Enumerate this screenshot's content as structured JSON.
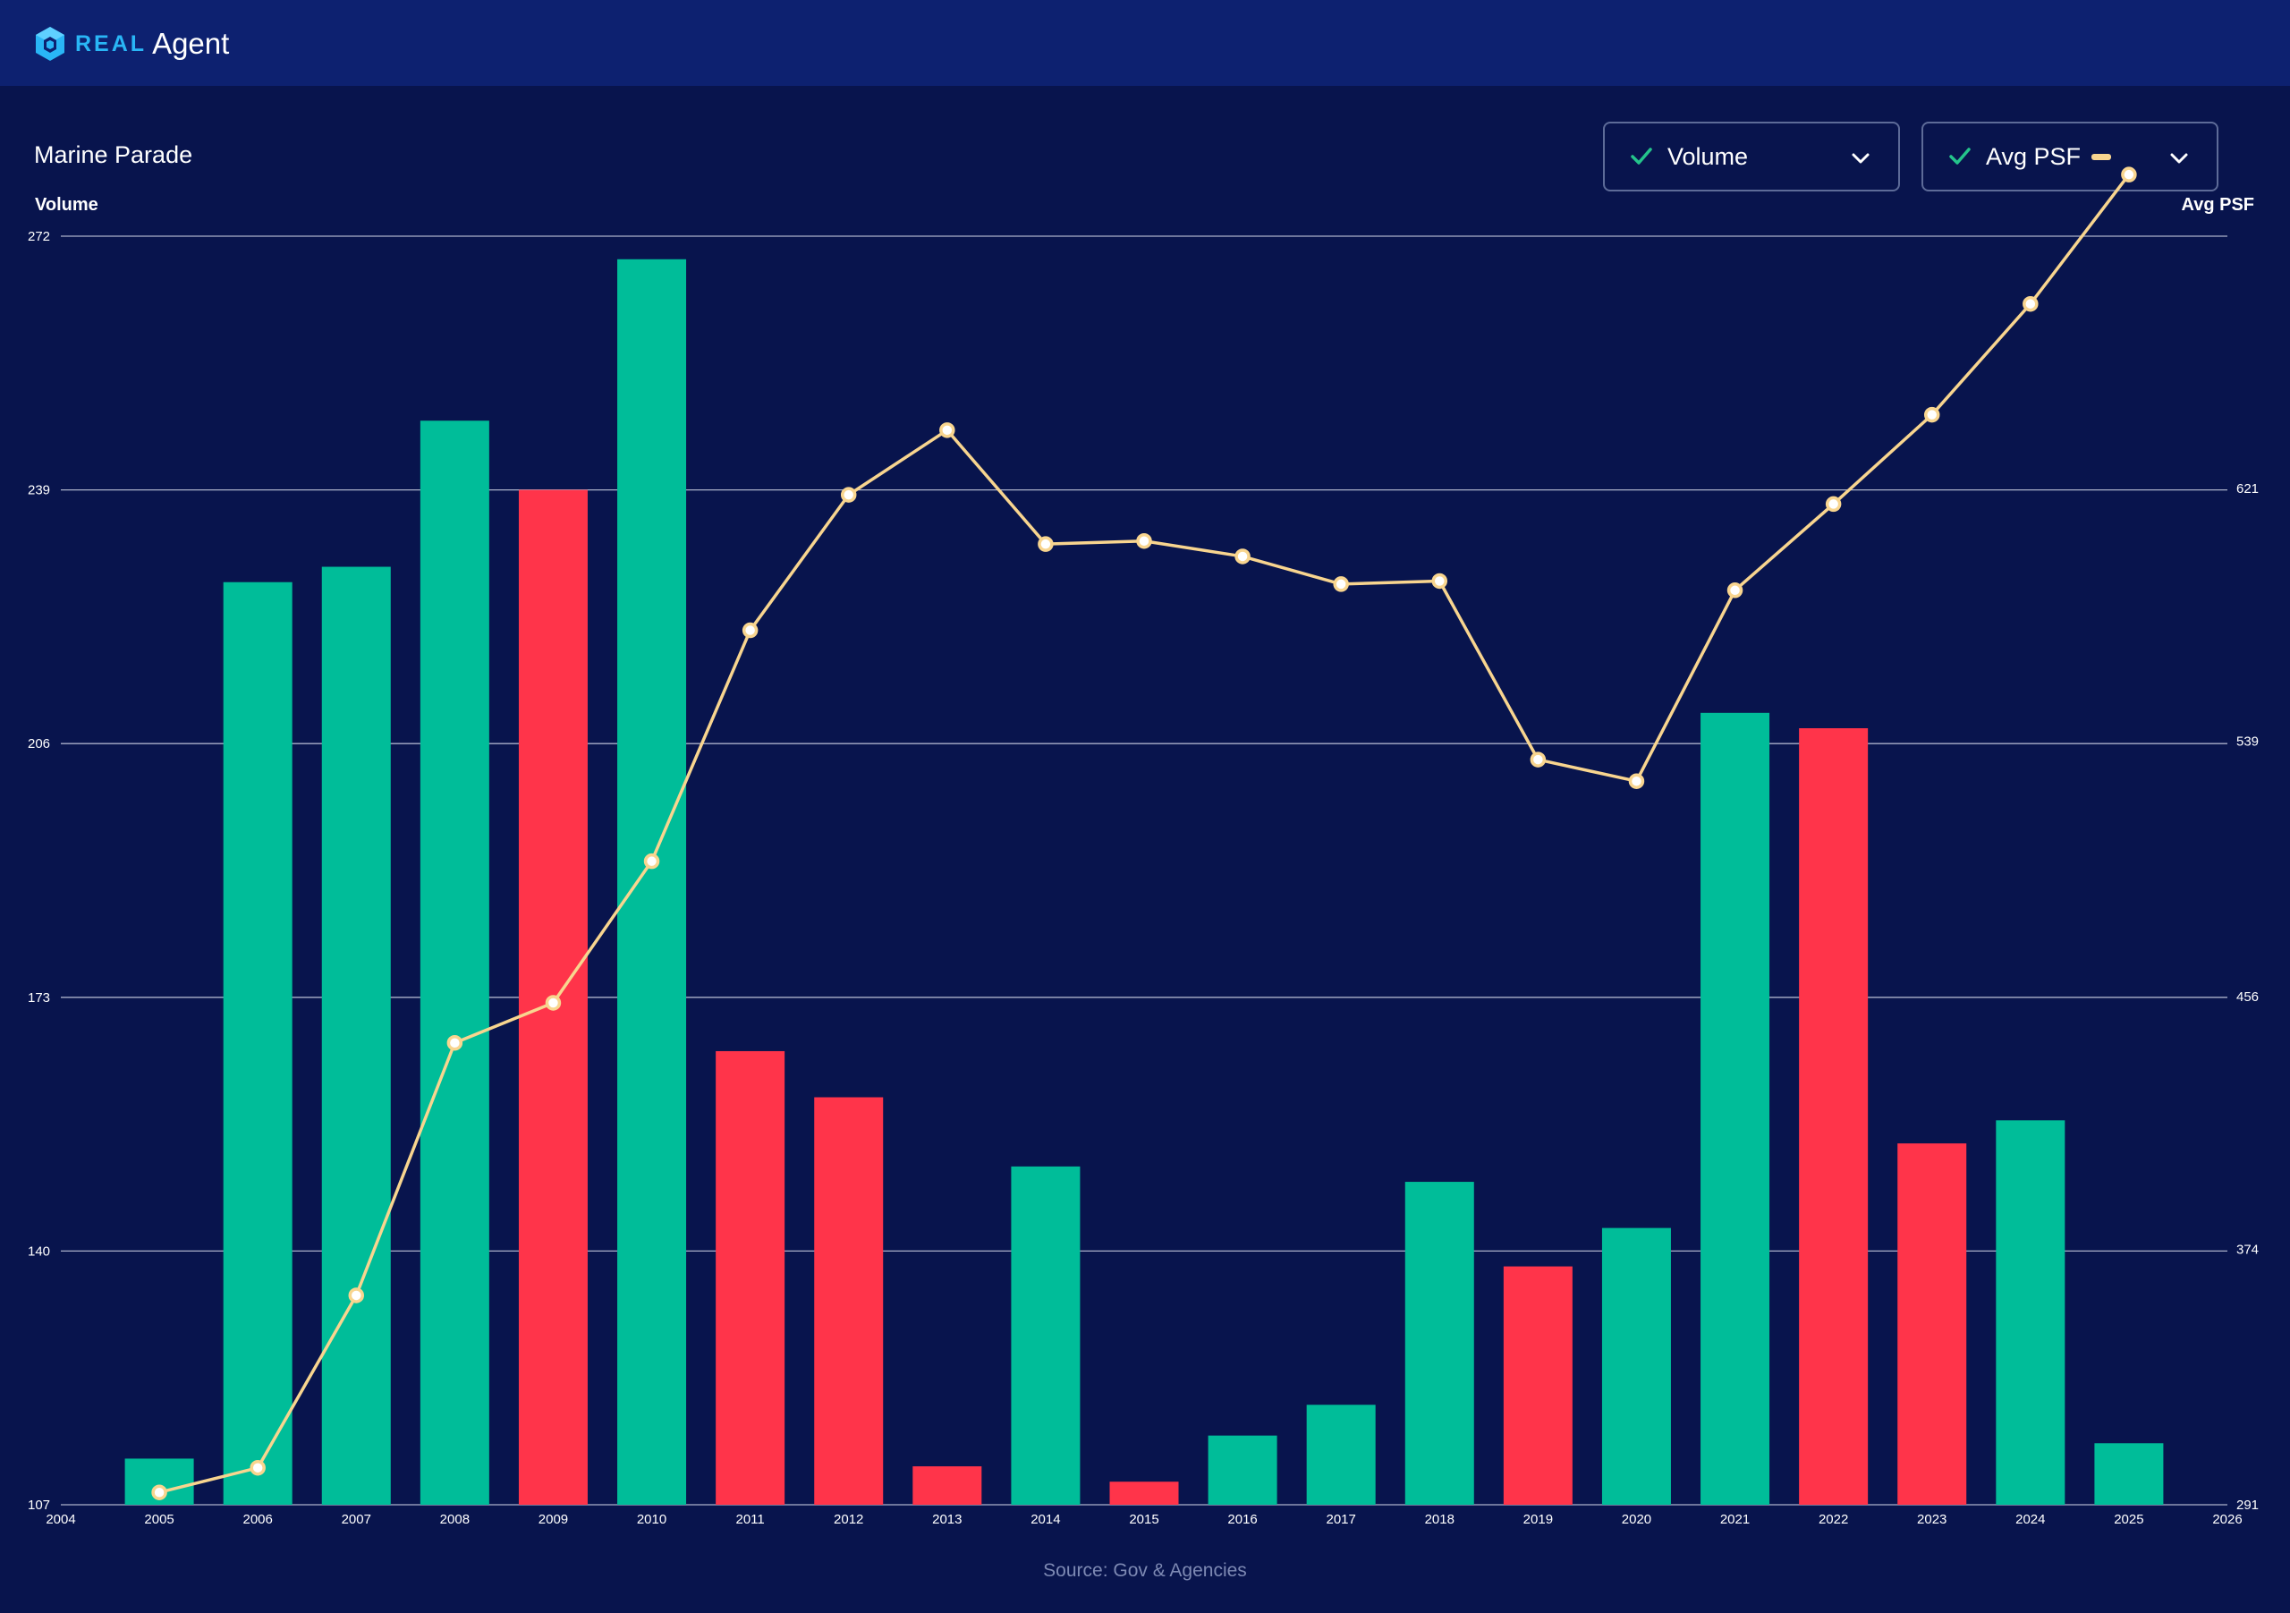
{
  "brand": {
    "real": "REAL",
    "agent": "Agent"
  },
  "title": "Marine Parade",
  "controls": {
    "volume_label": "Volume",
    "psf_label": "Avg PSF"
  },
  "colors": {
    "up": "#00bd99",
    "down": "#ff344a",
    "line": "#f8d58f",
    "grid": "#c8cde0",
    "check": "#24c48b"
  },
  "source": "Source: Gov & Agencies",
  "chart_data": {
    "type": "bar",
    "x": [
      2005,
      2006,
      2007,
      2008,
      2009,
      2010,
      2011,
      2012,
      2013,
      2014,
      2015,
      2016,
      2017,
      2018,
      2019,
      2020,
      2021,
      2022,
      2023,
      2024,
      2025
    ],
    "xlim": [
      2004,
      2026
    ],
    "x_ticks": [
      "2004",
      "2005",
      "2006",
      "2007",
      "2008",
      "2009",
      "2010",
      "2011",
      "2012",
      "2013",
      "2014",
      "2015",
      "2016",
      "2017",
      "2018",
      "2019",
      "2020",
      "2021",
      "2022",
      "2023",
      "2024",
      "2025",
      "2026"
    ],
    "series": [
      {
        "name": "Volume",
        "type": "bar",
        "axis": "left",
        "values": [
          113,
          227,
          229,
          248,
          239,
          269,
          166,
          160,
          112,
          151,
          110,
          116,
          120,
          149,
          138,
          143,
          210,
          208,
          154,
          157,
          115
        ],
        "colors": [
          "up",
          "up",
          "up",
          "up",
          "down",
          "up",
          "down",
          "down",
          "down",
          "up",
          "down",
          "up",
          "up",
          "up",
          "down",
          "up",
          "up",
          "down",
          "down",
          "up",
          "up"
        ]
      },
      {
        "name": "Avg PSF",
        "type": "line",
        "axis": "right",
        "values": [
          295,
          303,
          359,
          441,
          454,
          500,
          575,
          619,
          640,
          603,
          604,
          599,
          590,
          591,
          533,
          526,
          588,
          616,
          645,
          681,
          723
        ]
      }
    ],
    "y_left": {
      "label": "Volume",
      "range": [
        107,
        272
      ],
      "ticks": [
        "107",
        "140",
        "173",
        "206",
        "239",
        "272"
      ]
    },
    "y_right": {
      "label": "Avg PSF",
      "range": [
        291,
        703
      ],
      "ticks": [
        "291",
        "374",
        "456",
        "539",
        "621"
      ]
    },
    "grid": true
  }
}
